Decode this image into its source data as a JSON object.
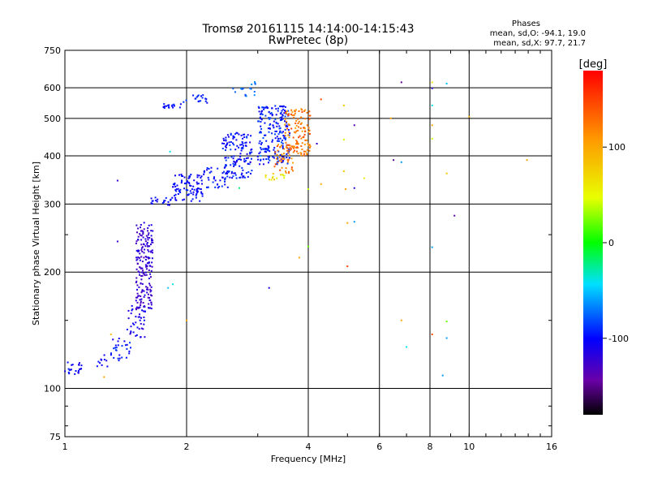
{
  "chart_data": {
    "type": "scatter",
    "title": "Tromsø 20161115 14:14:00-14:15:43",
    "subtitle": "RwPretec (8p)",
    "xlabel": "Frequency [MHz]",
    "ylabel": "Stationary phase Virtual Height [km]",
    "x_scale": "log",
    "y_scale": "log",
    "xlim": [
      1,
      16
    ],
    "ylim": [
      75,
      750
    ],
    "x_ticks": [
      1,
      2,
      4,
      6,
      8,
      10,
      16
    ],
    "y_ticks": [
      75,
      100,
      200,
      300,
      400,
      500,
      600,
      750
    ],
    "grid": true,
    "phase_stats": {
      "title": "Phases",
      "line1": "mean, sd,O: -94.1, 19.0",
      "line2": "mean, sd,X:  97.7, 21.7"
    },
    "colorbar": {
      "label": "[deg]",
      "ticks": [
        100,
        0,
        -100
      ],
      "range": [
        -180,
        180
      ]
    },
    "clusters": [
      {
        "f": [
          1.0,
          1.1
        ],
        "h": [
          108,
          118
        ],
        "phase": [
          -115,
          -90
        ],
        "n": 22
      },
      {
        "f": [
          1.15,
          1.28
        ],
        "h": [
          112,
          122
        ],
        "phase": [
          -115,
          -90
        ],
        "n": 10
      },
      {
        "f": [
          1.3,
          1.48
        ],
        "h": [
          118,
          135
        ],
        "phase": [
          -115,
          -85
        ],
        "n": 28
      },
      {
        "f": [
          1.42,
          1.58
        ],
        "h": [
          135,
          165
        ],
        "phase": [
          -125,
          -95
        ],
        "n": 40
      },
      {
        "f": [
          1.5,
          1.65
        ],
        "h": [
          160,
          270
        ],
        "phase": [
          -135,
          -110
        ],
        "n": 190
      },
      {
        "f": [
          1.62,
          1.85
        ],
        "h": [
          298,
          312
        ],
        "phase": [
          -110,
          -90
        ],
        "n": 20
      },
      {
        "f": [
          1.85,
          2.2
        ],
        "h": [
          305,
          360
        ],
        "phase": [
          -110,
          -90
        ],
        "n": 90
      },
      {
        "f": [
          2.2,
          2.55
        ],
        "h": [
          330,
          375
        ],
        "phase": [
          -110,
          -85
        ],
        "n": 40
      },
      {
        "f": [
          2.45,
          2.9
        ],
        "h": [
          350,
          460
        ],
        "phase": [
          -115,
          -80
        ],
        "n": 140
      },
      {
        "f": [
          1.75,
          1.95
        ],
        "h": [
          530,
          545
        ],
        "phase": [
          -110,
          -85
        ],
        "n": 18
      },
      {
        "f": [
          1.95,
          2.3
        ],
        "h": [
          548,
          575
        ],
        "phase": [
          -105,
          -85
        ],
        "n": 18
      },
      {
        "f": [
          2.6,
          3.0
        ],
        "h": [
          570,
          625
        ],
        "phase": [
          -85,
          -60
        ],
        "n": 16
      },
      {
        "f": [
          3.0,
          3.6
        ],
        "h": [
          380,
          540
        ],
        "phase": [
          -110,
          -80
        ],
        "n": 210
      },
      {
        "f": [
          3.1,
          3.5
        ],
        "h": [
          340,
          360
        ],
        "phase": [
          40,
          90
        ],
        "n": 14
      },
      {
        "f": [
          3.3,
          3.7
        ],
        "h": [
          360,
          430
        ],
        "phase": [
          100,
          150
        ],
        "n": 50
      },
      {
        "f": [
          3.5,
          4.05
        ],
        "h": [
          400,
          530
        ],
        "phase": [
          100,
          150
        ],
        "n": 120
      }
    ],
    "points": [
      [
        1.35,
        345,
        -120
      ],
      [
        1.35,
        240,
        -120
      ],
      [
        1.3,
        138,
        90
      ],
      [
        1.25,
        107,
        100
      ],
      [
        1.8,
        182,
        -50
      ],
      [
        1.85,
        186,
        -40
      ],
      [
        1.82,
        410,
        -40
      ],
      [
        2.0,
        150,
        100
      ],
      [
        4.0,
        328,
        40
      ],
      [
        4.0,
        233,
        20
      ],
      [
        3.8,
        218,
        100
      ],
      [
        4.3,
        560,
        150
      ],
      [
        4.3,
        338,
        100
      ],
      [
        4.2,
        430,
        -120
      ],
      [
        4.9,
        540,
        80
      ],
      [
        4.9,
        440,
        40
      ],
      [
        4.9,
        365,
        80
      ],
      [
        4.95,
        328,
        100
      ],
      [
        5.0,
        268,
        100
      ],
      [
        5.0,
        207,
        150
      ],
      [
        5.2,
        480,
        -140
      ],
      [
        5.2,
        330,
        -120
      ],
      [
        5.2,
        270,
        -60
      ],
      [
        5.5,
        350,
        60
      ],
      [
        6.4,
        500,
        100
      ],
      [
        6.5,
        390,
        -150
      ],
      [
        6.8,
        620,
        -150
      ],
      [
        6.8,
        385,
        -60
      ],
      [
        6.8,
        150,
        100
      ],
      [
        7.0,
        128,
        -40
      ],
      [
        8.1,
        620,
        60
      ],
      [
        8.1,
        598,
        -120
      ],
      [
        8.1,
        540,
        -40
      ],
      [
        8.1,
        480,
        100
      ],
      [
        8.1,
        443,
        40
      ],
      [
        8.1,
        232,
        -60
      ],
      [
        8.1,
        138,
        150
      ],
      [
        8.6,
        108,
        -60
      ],
      [
        8.8,
        615,
        -50
      ],
      [
        8.8,
        360,
        80
      ],
      [
        8.8,
        149,
        20
      ],
      [
        8.8,
        135,
        -60
      ],
      [
        9.2,
        280,
        -140
      ],
      [
        10.0,
        505,
        100
      ],
      [
        13.9,
        390,
        100
      ],
      [
        3.2,
        182,
        -110
      ],
      [
        3.05,
        400,
        -60
      ],
      [
        2.7,
        330,
        -20
      ]
    ]
  }
}
